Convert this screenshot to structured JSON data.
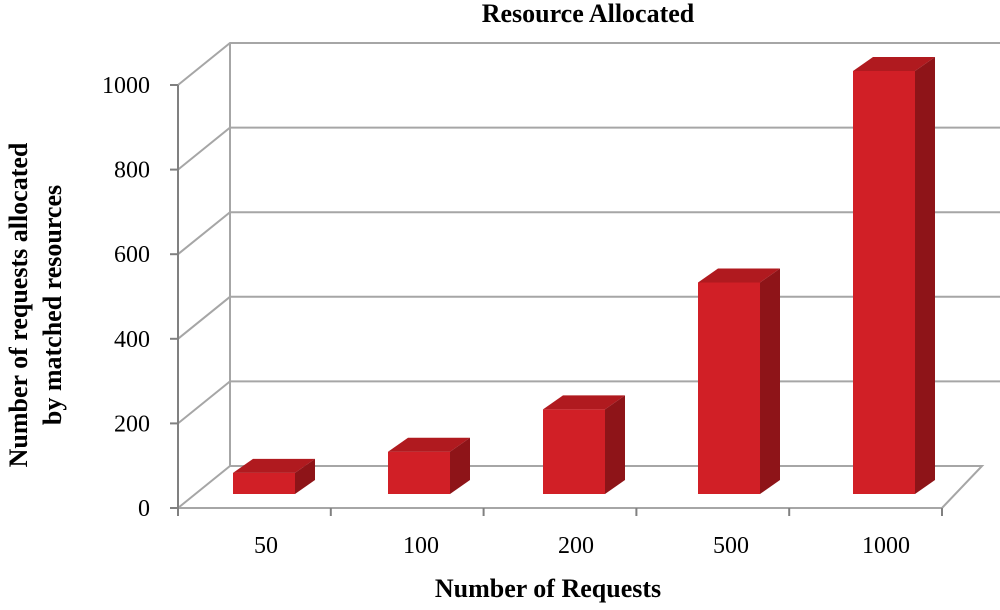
{
  "chart_data": {
    "type": "bar",
    "title": "Resource Allocated",
    "xlabel": "Number of Requests",
    "ylabel_lines": [
      "Number of requests allocated",
      "by matched resources"
    ],
    "categories": [
      "50",
      "100",
      "200",
      "500",
      "1000"
    ],
    "values": [
      50,
      100,
      200,
      500,
      1000
    ],
    "ylim": [
      0,
      1000
    ],
    "yticks": [
      "0",
      "200",
      "400",
      "600",
      "800",
      "1000"
    ],
    "grid": true,
    "legend": "none",
    "style": "3d-column"
  },
  "colors": {
    "bar_front": "#d11f26",
    "bar_top": "#b01a1f",
    "bar_side": "#8e1418",
    "grid": "#a6a6a6",
    "axis": "#808080"
  }
}
